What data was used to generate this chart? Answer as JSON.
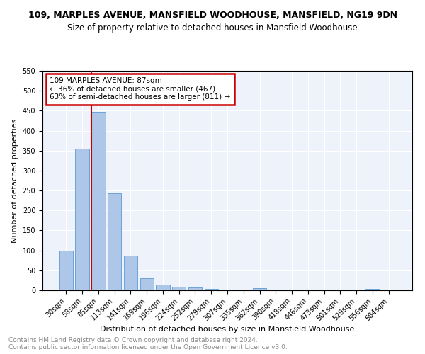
{
  "title": "109, MARPLES AVENUE, MANSFIELD WOODHOUSE, MANSFIELD, NG19 9DN",
  "subtitle": "Size of property relative to detached houses in Mansfield Woodhouse",
  "xlabel": "Distribution of detached houses by size in Mansfield Woodhouse",
  "ylabel": "Number of detached properties",
  "footer_line1": "Contains HM Land Registry data © Crown copyright and database right 2024.",
  "footer_line2": "Contains public sector information licensed under the Open Government Licence v3.0.",
  "annotation_line1": "109 MARPLES AVENUE: 87sqm",
  "annotation_line2": "← 36% of detached houses are smaller (467)",
  "annotation_line3": "63% of semi-detached houses are larger (811) →",
  "bar_labels": [
    "30sqm",
    "58sqm",
    "85sqm",
    "113sqm",
    "141sqm",
    "169sqm",
    "196sqm",
    "224sqm",
    "252sqm",
    "279sqm",
    "307sqm",
    "335sqm",
    "362sqm",
    "390sqm",
    "418sqm",
    "446sqm",
    "473sqm",
    "501sqm",
    "529sqm",
    "556sqm",
    "584sqm"
  ],
  "bar_values": [
    100,
    355,
    447,
    243,
    87,
    30,
    14,
    9,
    7,
    4,
    0,
    0,
    6,
    0,
    0,
    0,
    0,
    0,
    0,
    4,
    0
  ],
  "bar_color": "#aec6e8",
  "bar_edge_color": "#5b9bd5",
  "property_line_index": 2,
  "annotation_box_color": "#cc0000",
  "ylim": [
    0,
    550
  ],
  "yticks": [
    0,
    50,
    100,
    150,
    200,
    250,
    300,
    350,
    400,
    450,
    500,
    550
  ],
  "bg_color": "#eef2fb",
  "title_fontsize": 9,
  "subtitle_fontsize": 8.5,
  "axis_label_fontsize": 8,
  "tick_fontsize": 7,
  "annotation_fontsize": 7.5,
  "footer_fontsize": 6.5
}
